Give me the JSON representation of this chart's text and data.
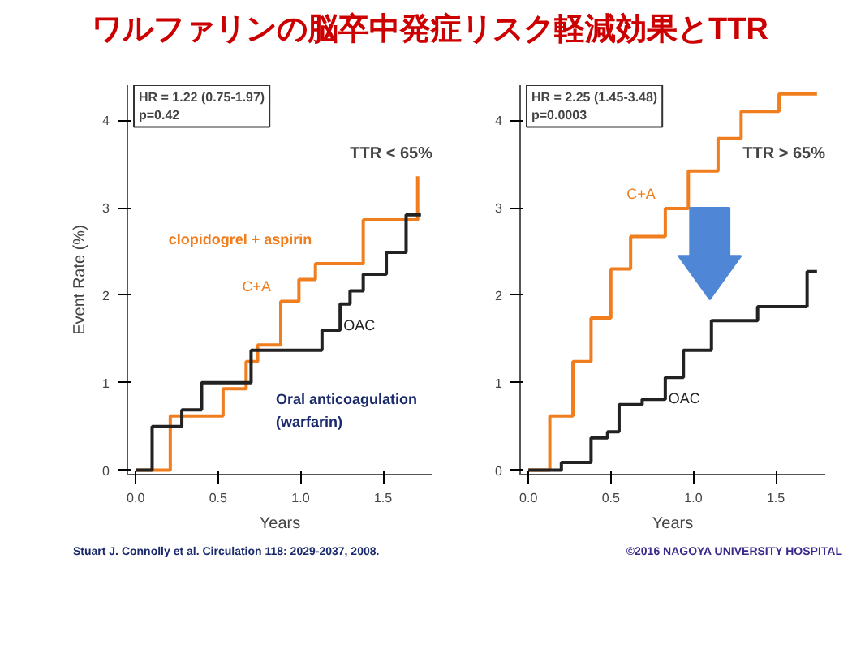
{
  "chart_data": [
    {
      "type": "step",
      "title": "ワルファリンの脳卒中発症リスク軽減効果とTTR",
      "xlabel": "Years",
      "ylabel": "Event Rate (%)",
      "series": [
        {
          "name": "C+A",
          "color": "#f07d1e",
          "x": [
            0,
            0.21,
            0.42,
            0.53,
            0.67,
            0.74,
            0.88,
            0.99,
            1.09,
            1.34,
            1.38,
            1.66,
            1.71
          ],
          "values": [
            0,
            0.62,
            0.62,
            0.93,
            1.24,
            1.43,
            1.93,
            2.18,
            2.36,
            2.36,
            2.86,
            2.86,
            3.36
          ]
        },
        {
          "name": "OAC",
          "color": "#222222",
          "x": [
            0,
            0.1,
            0.28,
            0.4,
            0.7,
            1.13,
            1.24,
            1.3,
            1.38,
            1.52,
            1.64,
            1.73
          ],
          "values": [
            0,
            0.5,
            0.69,
            1.0,
            1.37,
            1.6,
            1.9,
            2.05,
            2.24,
            2.49,
            2.92,
            2.92
          ]
        }
      ],
      "xlim": [
        -0.05,
        1.8
      ],
      "ylim": [
        -0.05,
        4.4
      ],
      "xticks": [
        {
          "value": 0,
          "label": "0.0"
        },
        {
          "value": 0.5,
          "label": "0.5"
        },
        {
          "value": 1,
          "label": "1.0"
        },
        {
          "value": 1.5,
          "label": "1.5"
        }
      ],
      "yticks": [
        0,
        1,
        2,
        3,
        4
      ],
      "grid": false,
      "legend": false,
      "annotations": [
        "HR = 1.22 (0.75-1.97)",
        "p=0.42",
        "TTR < 65%",
        "Stuart J. Connolly et al. Circulation 118: 2029-2037, 2008.",
        "clopidogrel + aspirin",
        "Oral anticoagulation",
        "(warfarin)"
      ]
    },
    {
      "type": "step",
      "xlabel": "Years",
      "series": [
        {
          "name": "C+A",
          "color": "#f07d1e",
          "x": [
            0,
            0.13,
            0.27,
            0.38,
            0.5,
            0.62,
            0.83,
            0.97,
            1.15,
            1.29,
            1.43,
            1.52,
            1.75
          ],
          "values": [
            0,
            0.62,
            1.24,
            1.74,
            2.3,
            2.67,
            2.99,
            3.42,
            3.79,
            4.1,
            4.1,
            4.3,
            4.3
          ]
        },
        {
          "name": "OAC",
          "color": "#222222",
          "x": [
            0,
            0.2,
            0.38,
            0.48,
            0.55,
            0.69,
            0.83,
            0.94,
            1.11,
            1.39,
            1.68,
            1.69,
            1.75
          ],
          "values": [
            0,
            0.09,
            0.37,
            0.44,
            0.75,
            0.81,
            1.06,
            1.37,
            1.71,
            1.87,
            1.87,
            2.27,
            2.27
          ]
        }
      ],
      "xlim": [
        -0.05,
        1.8
      ],
      "ylim": [
        -0.05,
        4.4
      ],
      "xticks": [
        {
          "value": 0,
          "label": "0.0"
        },
        {
          "value": 0.5,
          "label": "0.5"
        },
        {
          "value": 1,
          "label": "1.0"
        },
        {
          "value": 1.5,
          "label": "1.5"
        }
      ],
      "yticks": [
        0,
        1,
        2,
        3,
        4
      ],
      "grid": false,
      "legend": false,
      "annotations": [
        "HR = 2.25 (1.45-3.48)",
        "p=0.0003",
        "TTR > 65%",
        "©2016 NAGOYA UNIVERSITY HOSPITAL"
      ]
    }
  ]
}
